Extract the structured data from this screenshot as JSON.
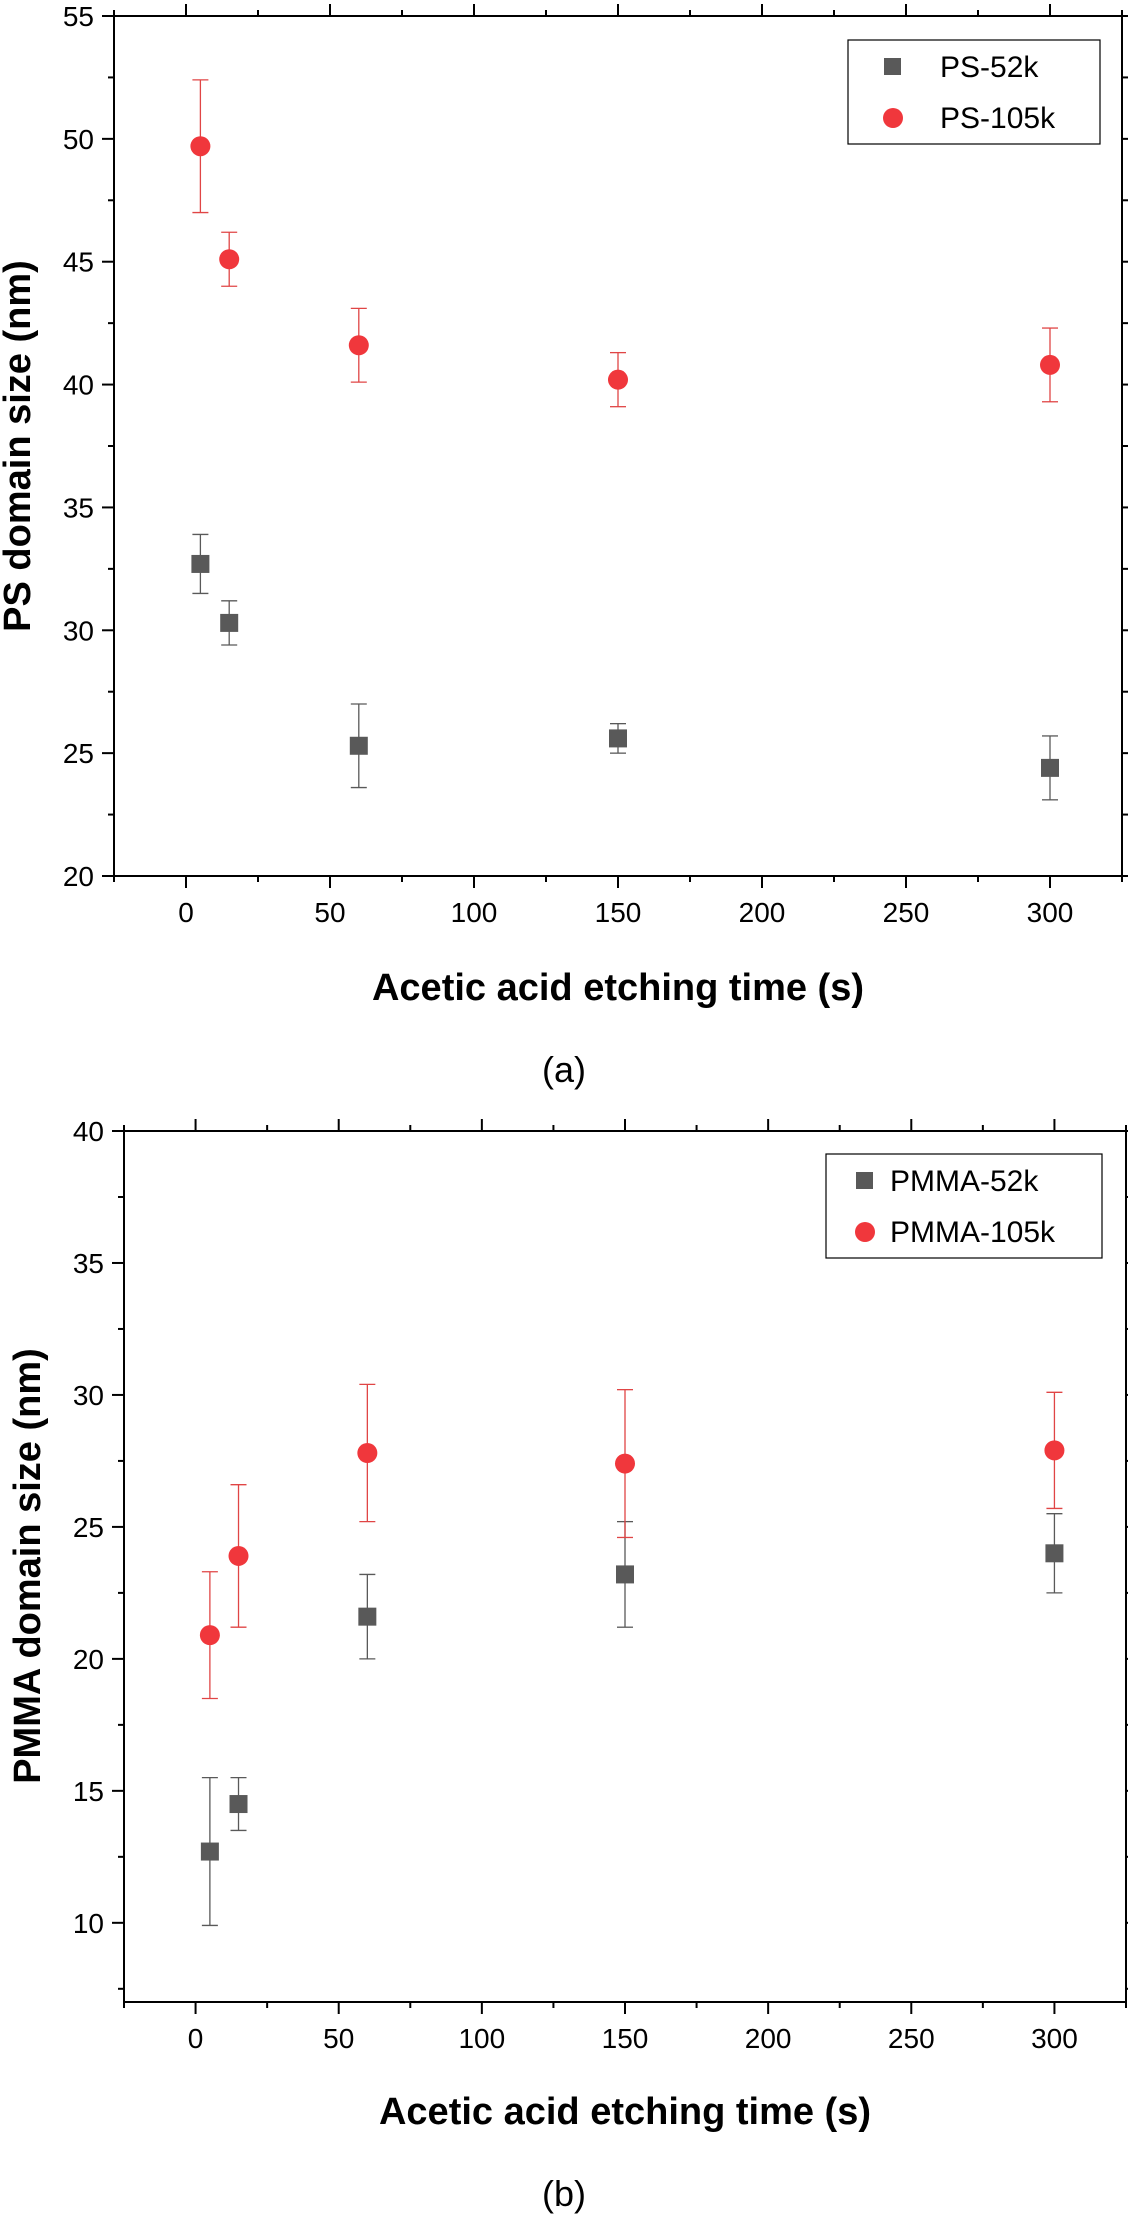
{
  "chart_data": [
    {
      "type": "scatter",
      "panel_label": "(a)",
      "xlabel": "Acetic acid etching time (s)",
      "ylabel": "PS domain size (nm)",
      "xlim": [
        -25,
        325
      ],
      "ylim": [
        20,
        55
      ],
      "xticks": [
        0,
        50,
        100,
        150,
        200,
        250,
        300
      ],
      "yticks": [
        20,
        25,
        30,
        35,
        40,
        45,
        50,
        55
      ],
      "legend_position": "top-right",
      "grid": false,
      "series": [
        {
          "name": "PS-52k",
          "marker": "square",
          "color": "#595959",
          "errcolor": "#595959",
          "x": [
            5,
            15,
            60,
            150,
            300
          ],
          "y": [
            32.7,
            30.3,
            25.3,
            25.6,
            24.4
          ],
          "yerr": [
            1.2,
            0.9,
            1.7,
            0.6,
            1.3
          ]
        },
        {
          "name": "PS-105k",
          "marker": "circle",
          "color": "#f0373c",
          "errcolor": "#e04545",
          "x": [
            5,
            15,
            60,
            150,
            300
          ],
          "y": [
            49.7,
            45.1,
            41.6,
            40.2,
            40.8
          ],
          "yerr": [
            2.7,
            1.1,
            1.5,
            1.1,
            1.5
          ]
        }
      ]
    },
    {
      "type": "scatter",
      "panel_label": "(b)",
      "xlabel": "Acetic acid etching time (s)",
      "ylabel": "PMMA domain size (nm)",
      "xlim": [
        -25,
        325
      ],
      "ylim": [
        7,
        40
      ],
      "xticks": [
        0,
        50,
        100,
        150,
        200,
        250,
        300
      ],
      "yticks": [
        10,
        15,
        20,
        25,
        30,
        35,
        40
      ],
      "legend_position": "top-right",
      "grid": false,
      "series": [
        {
          "name": "PMMA-52k",
          "marker": "square",
          "color": "#595959",
          "errcolor": "#595959",
          "x": [
            5,
            15,
            60,
            150,
            300
          ],
          "y": [
            12.7,
            14.5,
            21.6,
            23.2,
            24.0
          ],
          "yerr": [
            2.8,
            1.0,
            1.6,
            2.0,
            1.5
          ]
        },
        {
          "name": "PMMA-105k",
          "marker": "circle",
          "color": "#f0373c",
          "errcolor": "#e04545",
          "x": [
            5,
            15,
            60,
            150,
            300
          ],
          "y": [
            20.9,
            23.9,
            27.8,
            27.4,
            27.9
          ],
          "yerr": [
            2.4,
            2.7,
            2.6,
            2.8,
            2.2
          ]
        }
      ]
    }
  ]
}
